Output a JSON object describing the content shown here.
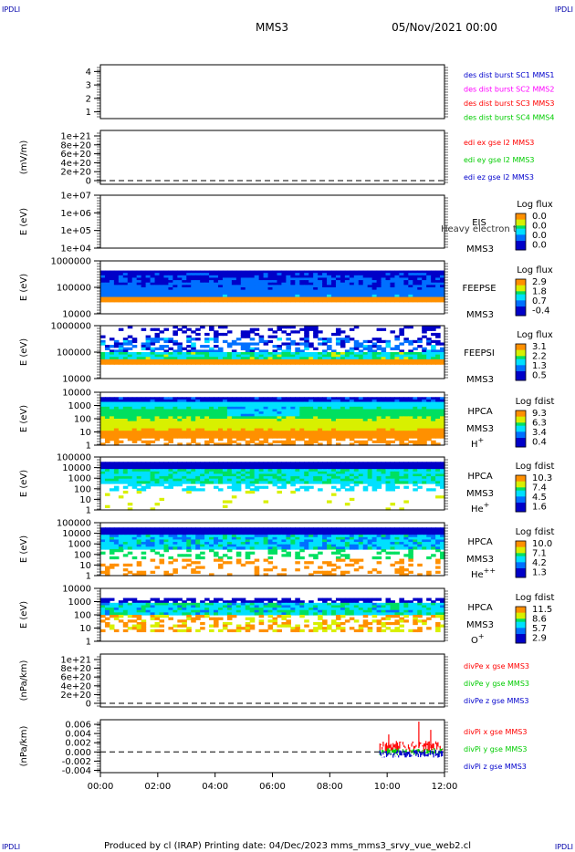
{
  "corner_labels": {
    "top_left": "IPDLI",
    "top_right": "IPDLI",
    "bottom_left": "IPDLI",
    "bottom_right": "IPDLI"
  },
  "header": {
    "spacecraft": "MMS3",
    "date": "05/Nov/2021 00:00"
  },
  "footer": {
    "text": "Produced by cl (IRAP)   Printing date: 04/Dec/2023   mms_mms3_srvy_vue_web2.cl"
  },
  "time_axis": {
    "ticks": [
      "00:00",
      "02:00",
      "04:00",
      "06:00",
      "08:00",
      "10:00",
      "12:00"
    ]
  },
  "colors": {
    "red": "#ff0000",
    "green": "#00cc00",
    "blue": "#0000cc",
    "magenta": "#ff00ff",
    "axis": "#000000"
  },
  "chart_data": [
    {
      "type": "line",
      "ylim": [
        0.5,
        4.5
      ],
      "ytick_labels": [
        "4",
        "3",
        "2",
        "1"
      ],
      "legend_placement": "right",
      "legend": [
        {
          "label": "des dist burst SC1 MMS1",
          "color": "#0000cc"
        },
        {
          "label": "des dist burst SC2 MMS2",
          "color": "#ff00ff"
        },
        {
          "label": "des dist burst SC3 MMS3",
          "color": "#ff0000"
        },
        {
          "label": "des dist burst SC4 MMS4",
          "color": "#00cc00"
        }
      ]
    },
    {
      "type": "line",
      "ylabel": "(mV/m)",
      "ytick_labels": [
        "1e+21",
        "8e+20",
        "6e+20",
        "4e+20",
        "2e+20",
        "0"
      ],
      "zero_line": true,
      "legend_placement": "right",
      "legend": [
        {
          "label": "edi ex gse l2 MMS3",
          "color": "#ff0000"
        },
        {
          "label": "edi ey gse l2 MMS3",
          "color": "#00cc00"
        },
        {
          "label": "edi ez gse l2 MMS3",
          "color": "#0000cc"
        }
      ]
    },
    {
      "type": "heatmap",
      "ylabel": "E (eV)",
      "yscale": "log",
      "ytick_labels": [
        "1e+07",
        "1e+06",
        "1e+05",
        "1e+04"
      ],
      "instrument": [
        "EIS",
        "MMS3"
      ],
      "overlay_text": "Heavy electron to",
      "colorbar": {
        "title": "Log flux",
        "labels": [
          "0.0",
          "0.0",
          "0.0",
          "0.0"
        ]
      }
    },
    {
      "type": "heatmap",
      "ylabel": "E (eV)",
      "yscale": "log",
      "ytick_labels": [
        "1000000",
        "100000",
        "10000"
      ],
      "instrument": [
        "FEEPSE",
        "MMS3"
      ],
      "colorbar": {
        "title": "Log flux",
        "labels": [
          "2.9",
          "1.8",
          "0.7",
          "-0.4"
        ]
      }
    },
    {
      "type": "heatmap",
      "ylabel": "E (eV)",
      "yscale": "log",
      "ytick_labels": [
        "1000000",
        "100000",
        "10000"
      ],
      "instrument": [
        "FEEPSI",
        "MMS3"
      ],
      "colorbar": {
        "title": "Log flux",
        "labels": [
          "3.1",
          "2.2",
          "1.3",
          "0.5"
        ]
      }
    },
    {
      "type": "heatmap",
      "ylabel": "E (eV)",
      "yscale": "log",
      "ytick_labels": [
        "10000",
        "1000",
        "100",
        "10",
        "1"
      ],
      "instrument": [
        "HPCA",
        "MMS3",
        "H+"
      ],
      "colorbar": {
        "title": "Log fdist",
        "labels": [
          "9.3",
          "6.3",
          "3.4",
          "0.4"
        ]
      }
    },
    {
      "type": "heatmap",
      "ylabel": "E (eV)",
      "yscale": "log",
      "ytick_labels": [
        "100000",
        "10000",
        "1000",
        "100",
        "10",
        "1"
      ],
      "instrument": [
        "HPCA",
        "MMS3",
        "He+"
      ],
      "colorbar": {
        "title": "Log fdist",
        "labels": [
          "10.3",
          "7.4",
          "4.5",
          "1.6"
        ]
      }
    },
    {
      "type": "heatmap",
      "ylabel": "E (eV)",
      "yscale": "log",
      "ytick_labels": [
        "100000",
        "10000",
        "1000",
        "100",
        "10",
        "1"
      ],
      "instrument": [
        "HPCA",
        "MMS3",
        "He++"
      ],
      "colorbar": {
        "title": "Log fdist",
        "labels": [
          "10.0",
          "7.1",
          "4.2",
          "1.3"
        ]
      }
    },
    {
      "type": "heatmap",
      "ylabel": "E (eV)",
      "yscale": "log",
      "ytick_labels": [
        "10000",
        "1000",
        "100",
        "10",
        "1"
      ],
      "instrument": [
        "HPCA",
        "MMS3",
        "O+"
      ],
      "colorbar": {
        "title": "Log fdist",
        "labels": [
          "11.5",
          "8.6",
          "5.7",
          "2.9"
        ]
      }
    },
    {
      "type": "line",
      "ylabel": "(nPa/km)",
      "ytick_labels": [
        "1e+21",
        "8e+20",
        "6e+20",
        "4e+20",
        "2e+20",
        "0"
      ],
      "zero_line": true,
      "legend_placement": "right",
      "legend": [
        {
          "label": "divPe x gse MMS3",
          "color": "#ff0000"
        },
        {
          "label": "divPe y gse MMS3",
          "color": "#00cc00"
        },
        {
          "label": "divPe z gse MMS3",
          "color": "#0000cc"
        }
      ]
    },
    {
      "type": "line",
      "ylabel": "(nPa/km)",
      "ylim": [
        -0.0045,
        0.007
      ],
      "ytick_labels": [
        "0.006",
        "0.004",
        "0.002",
        "0.000",
        "-0.002",
        "-0.004"
      ],
      "zero_line": true,
      "legend_placement": "right",
      "legend": [
        {
          "label": "divPi x gse MMS3",
          "color": "#ff0000"
        },
        {
          "label": "divPi y gse MMS3",
          "color": "#00cc00"
        },
        {
          "label": "divPi z gse MMS3",
          "color": "#0000cc"
        }
      ],
      "series": [
        {
          "name": "divPi x gse MMS3",
          "color": "#ff0000",
          "x_range": [
            "09:45",
            "12:00"
          ],
          "typical": 0.0012,
          "spread": 0.0012
        },
        {
          "name": "divPi y gse MMS3",
          "color": "#00cc00",
          "x_range": [
            "09:45",
            "12:00"
          ],
          "typical": 0.0,
          "spread": 0.0008
        },
        {
          "name": "divPi z gse MMS3",
          "color": "#0000cc",
          "x_range": [
            "09:45",
            "12:00"
          ],
          "typical": -0.0004,
          "spread": 0.0009
        }
      ]
    }
  ]
}
